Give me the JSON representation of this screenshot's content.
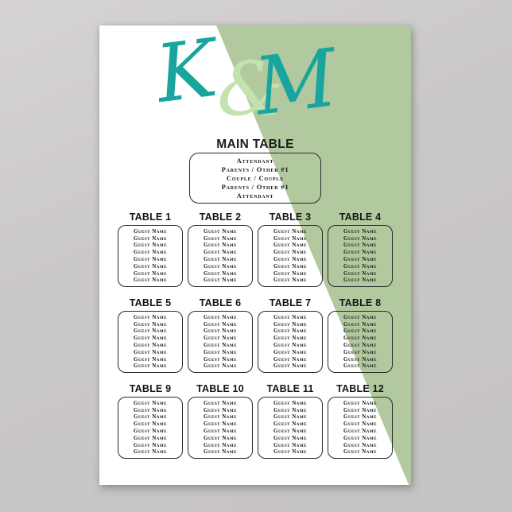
{
  "backdrop_color": "#cbc8c8",
  "poster": {
    "bg_color": "#ffffff",
    "accent_green": "#b2c9a0",
    "monogram": {
      "left_initial": "K",
      "ampersand": "&",
      "right_initial": "M",
      "teal_color": "#17a59d",
      "ampersand_color": "#c3e2ae"
    },
    "main_table": {
      "title": "MAIN TABLE",
      "seats": [
        "Attendant",
        "Parents / Other #1",
        "Couple / Couple",
        "Parents / Other #1",
        "Attendant"
      ]
    },
    "tables": [
      {
        "label": "TABLE 1",
        "guests": [
          "Guest Name",
          "Guest Name",
          "Guest Name",
          "Guest Name",
          "Guest Name",
          "Guest Name",
          "Guest Name",
          "Guest Name"
        ]
      },
      {
        "label": "TABLE 2",
        "guests": [
          "Guest Name",
          "Guest Name",
          "Guest Name",
          "Guest Name",
          "Guest Name",
          "Guest Name",
          "Guest Name",
          "Guest Name"
        ]
      },
      {
        "label": "TABLE 3",
        "guests": [
          "Guest Name",
          "Guest Name",
          "Guest Name",
          "Guest Name",
          "Guest Name",
          "Guest Name",
          "Guest Name",
          "Guest Name"
        ]
      },
      {
        "label": "TABLE 4",
        "guests": [
          "Guest Name",
          "Guest Name",
          "Guest Name",
          "Guest Name",
          "Guest Name",
          "Guest Name",
          "Guest Name",
          "Guest Name"
        ]
      },
      {
        "label": "TABLE 5",
        "guests": [
          "Guest Name",
          "Guest Name",
          "Guest Name",
          "Guest Name",
          "Guest Name",
          "Guest Name",
          "Guest Name",
          "Guest Name"
        ]
      },
      {
        "label": "TABLE 6",
        "guests": [
          "Guest Name",
          "Guest Name",
          "Guest Name",
          "Guest Name",
          "Guest Name",
          "Guest Name",
          "Guest Name",
          "Guest Name"
        ]
      },
      {
        "label": "TABLE 7",
        "guests": [
          "Guest Name",
          "Guest Name",
          "Guest Name",
          "Guest Name",
          "Guest Name",
          "Guest Name",
          "Guest Name",
          "Guest Name"
        ]
      },
      {
        "label": "TABLE 8",
        "guests": [
          "Guest Name",
          "Guest Name",
          "Guest Name",
          "Guest Name",
          "Guest Name",
          "Guest Name",
          "Guest Name",
          "Guest Name"
        ]
      },
      {
        "label": "TABLE 9",
        "guests": [
          "Guest Name",
          "Guest Name",
          "Guest Name",
          "Guest Name",
          "Guest Name",
          "Guest Name",
          "Guest Name",
          "Guest Name"
        ]
      },
      {
        "label": "TABLE 10",
        "guests": [
          "Guest Name",
          "Guest Name",
          "Guest Name",
          "Guest Name",
          "Guest Name",
          "Guest Name",
          "Guest Name",
          "Guest Name"
        ]
      },
      {
        "label": "TABLE 11",
        "guests": [
          "Guest Name",
          "Guest Name",
          "Guest Name",
          "Guest Name",
          "Guest Name",
          "Guest Name",
          "Guest Name",
          "Guest Name"
        ]
      },
      {
        "label": "TABLE 12",
        "guests": [
          "Guest Name",
          "Guest Name",
          "Guest Name",
          "Guest Name",
          "Guest Name",
          "Guest Name",
          "Guest Name",
          "Guest Name"
        ]
      }
    ]
  }
}
